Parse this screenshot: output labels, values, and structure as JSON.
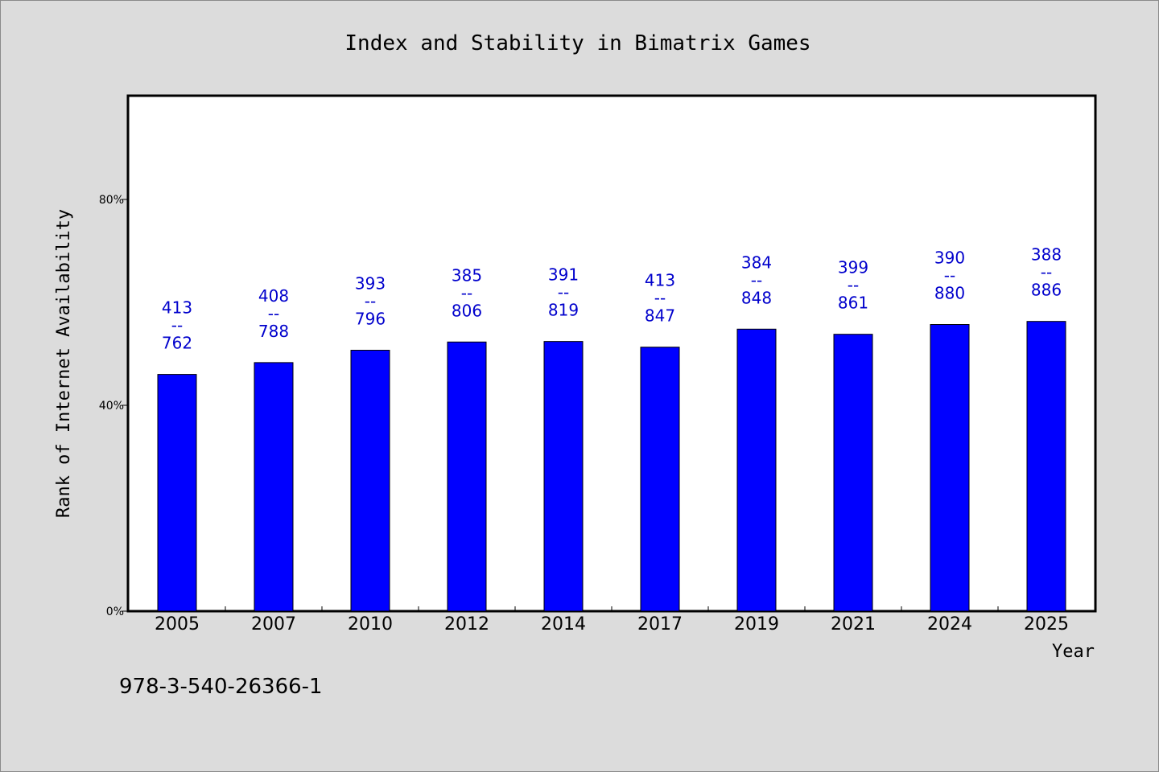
{
  "chart_data": {
    "type": "bar",
    "title": "Index and Stability in Bimatrix Games",
    "xlabel": "Year",
    "ylabel": "Rank of Internet Availability",
    "categories": [
      "2005",
      "2007",
      "2010",
      "2012",
      "2014",
      "2017",
      "2019",
      "2021",
      "2024",
      "2025"
    ],
    "values": [
      46,
      48.3,
      50.7,
      52.3,
      52.4,
      51.3,
      54.8,
      53.8,
      55.7,
      56.3
    ],
    "data_labels": [
      [
        "413",
        "762"
      ],
      [
        "408",
        "788"
      ],
      [
        "393",
        "796"
      ],
      [
        "385",
        "806"
      ],
      [
        "391",
        "819"
      ],
      [
        "413",
        "847"
      ],
      [
        "384",
        "848"
      ],
      [
        "399",
        "861"
      ],
      [
        "390",
        "880"
      ],
      [
        "388",
        "886"
      ]
    ],
    "data_label_separator": "--",
    "ylim": [
      0,
      100
    ],
    "yticks": [
      0,
      40,
      80
    ],
    "ytick_labels": [
      "0%",
      "40%",
      "80%"
    ],
    "grid": false,
    "bar_color": "#0000ff",
    "label_color": "#0000cc"
  },
  "footnote": "978-3-540-26366-1"
}
